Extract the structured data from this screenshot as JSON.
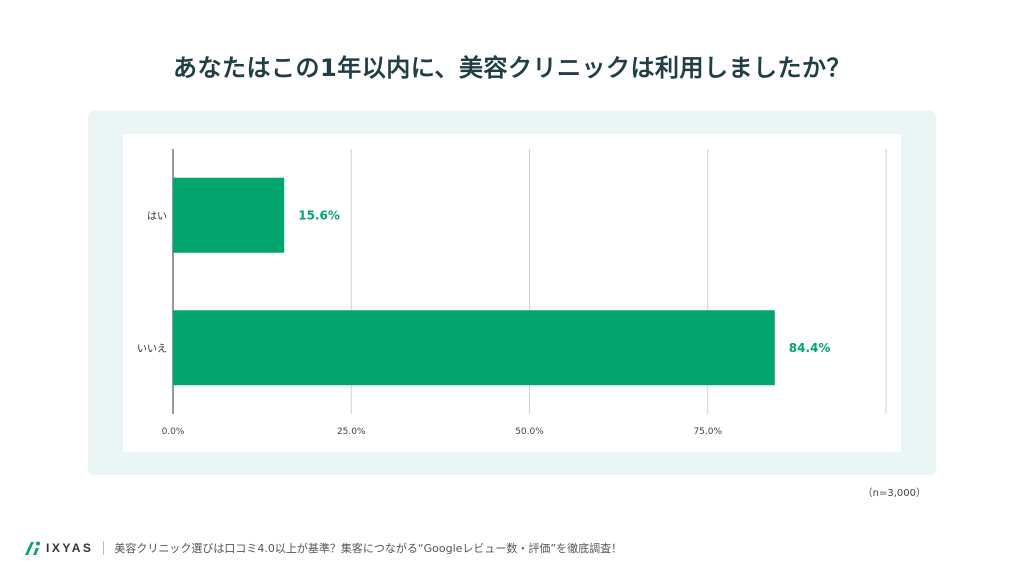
{
  "page": {
    "title": "あなたはこの1年以内に、美容クリニックは利用しましたか？",
    "sample_note": "（n=3,000）"
  },
  "footer": {
    "logo_text": "IXYAS",
    "article_title": "美容クリニック選びは口コミ4.0以上が基準？集客につながる“Googleレビュー数・評価”を徹底調査！"
  },
  "colors": {
    "bar": "#02a56b",
    "label": "#02a56b",
    "panel_bg": "#eaf5f5",
    "grid": "#d0d0d0",
    "logo_accent": "#02a56b"
  },
  "chart_data": {
    "type": "bar",
    "orientation": "horizontal",
    "categories": [
      "はい",
      "いいえ"
    ],
    "values": [
      15.6,
      84.4
    ],
    "value_labels": [
      "15.6%",
      "84.4%"
    ],
    "x_ticks": [
      "0.0%",
      "25.0%",
      "50.0%",
      "75.0%"
    ],
    "tick_values": [
      0,
      25,
      50,
      75
    ],
    "xlim": [
      0,
      100
    ],
    "grid": true,
    "title": "あなたはこの1年以内に、美容クリニックは利用しましたか？"
  }
}
